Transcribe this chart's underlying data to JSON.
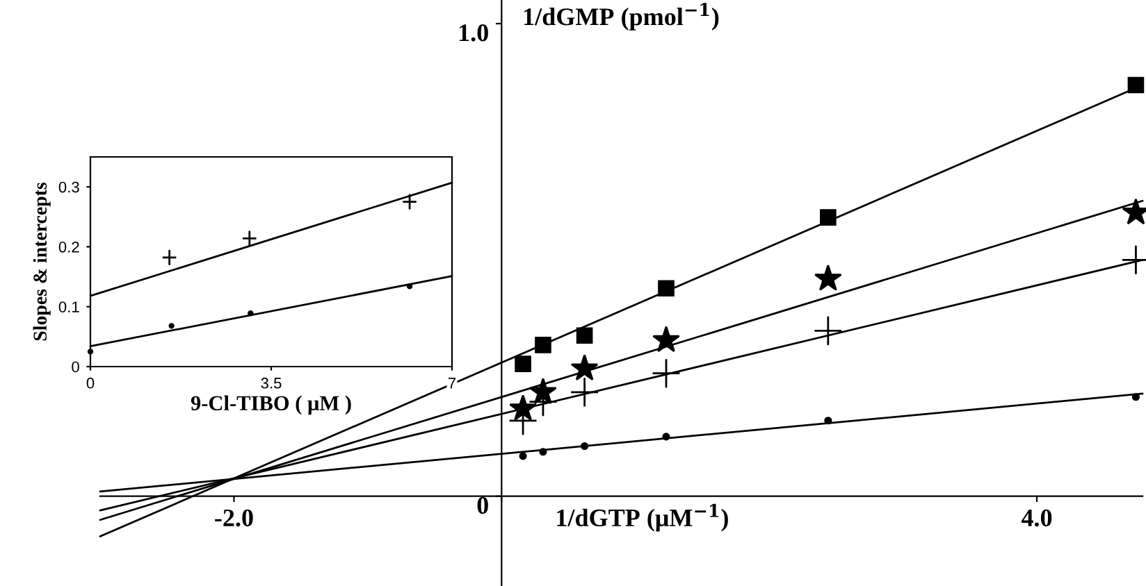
{
  "chart_data": [
    {
      "type": "scatter",
      "xlabel": "1/dGTP (μM$^{−1}$)",
      "ylabel": "1/dGMP (pmol$^{−1}$)",
      "xlim": [
        -3.0,
        4.79
      ],
      "ylim": [
        -0.19,
        1.05
      ],
      "xticks": [
        {
          "value": -2,
          "label": "-2.0"
        },
        {
          "value": 0,
          "label": null
        },
        {
          "value": 4,
          "label": "4.0"
        }
      ],
      "yticks": [
        0,
        {
          "value": 1,
          "label": "1.0"
        }
      ],
      "grid": false,
      "series": [
        {
          "marker": "square",
          "color": "#000000",
          "x": [
            0.16,
            0.31,
            0.62,
            1.23,
            2.44,
            4.74
          ],
          "values": [
            0.28,
            0.32,
            0.34,
            0.44,
            0.59,
            0.87
          ]
        },
        {
          "marker": "star",
          "color": "#000000",
          "x": [
            0.16,
            0.31,
            0.62,
            1.23,
            2.44,
            4.74
          ],
          "values": [
            0.185,
            0.22,
            0.27,
            0.33,
            0.46,
            0.6
          ]
        },
        {
          "marker": "cross",
          "color": "#000000",
          "x": [
            0.16,
            0.31,
            0.62,
            1.23,
            2.44,
            4.74
          ],
          "values": [
            0.16,
            0.2,
            0.22,
            0.26,
            0.35,
            0.5
          ]
        },
        {
          "marker": "circle",
          "color": "#000000",
          "x": [
            0.16,
            0.31,
            0.62,
            1.23,
            2.44,
            4.74
          ],
          "values": [
            0.085,
            0.094,
            0.106,
            0.126,
            0.16,
            0.21
          ]
        },
        {
          "type": "line",
          "marker": "none",
          "color": "#000000",
          "x": [
            -3.0,
            4.79
          ],
          "values": [
            -0.085,
            0.87
          ]
        },
        {
          "type": "line",
          "marker": "none",
          "color": "#000000",
          "x": [
            -3.0,
            4.79
          ],
          "values": [
            -0.05,
            0.625
          ]
        },
        {
          "type": "line",
          "marker": "none",
          "color": "#000000",
          "x": [
            -3.0,
            4.79
          ],
          "values": [
            -0.03,
            0.5
          ]
        },
        {
          "type": "line",
          "marker": "none",
          "color": "#000000",
          "x": [
            -3.0,
            4.79
          ],
          "values": [
            0.01,
            0.217
          ]
        }
      ]
    },
    {
      "type": "scatter",
      "xlabel": "9-Cl-TIBO ( μM )",
      "ylabel": "Slopes & intercepts",
      "xlim": [
        0,
        7
      ],
      "ylim": [
        0,
        0.35
      ],
      "xticks": [
        0,
        3.5,
        7
      ],
      "yticks": [
        0,
        0.1,
        0.2,
        0.3
      ],
      "grid": false,
      "series": [
        {
          "marker": "cross",
          "color": "#000000",
          "x": [
            1.53,
            3.08,
            6.18
          ],
          "values": [
            0.182,
            0.214,
            0.275
          ]
        },
        {
          "marker": "circle",
          "color": "#000000",
          "x": [
            0,
            1.57,
            3.1,
            6.18
          ],
          "values": [
            0.025,
            0.068,
            0.089,
            0.134
          ]
        },
        {
          "type": "line",
          "marker": "none",
          "color": "#000000",
          "x": [
            0,
            7
          ],
          "values": [
            0.118,
            0.307
          ]
        },
        {
          "type": "line",
          "marker": "none",
          "color": "#000000",
          "x": [
            0,
            7
          ],
          "values": [
            0.034,
            0.151
          ]
        }
      ]
    }
  ]
}
